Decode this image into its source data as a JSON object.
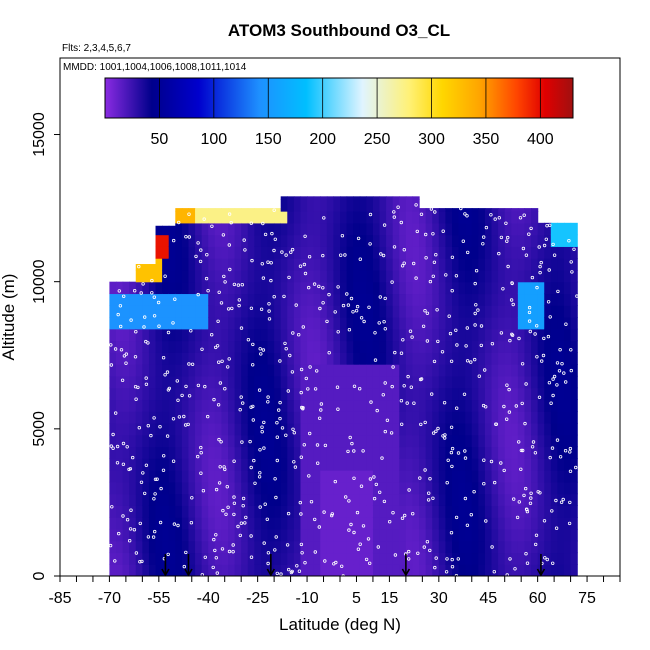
{
  "chart_data": {
    "type": "heatmap",
    "title": "ATOM3 Southbound O3_CL",
    "flights_note": "Flts: 2,3,4,5,6,7",
    "dates_note": "MMDD: 1001,1004,1006,1008,1011,1014",
    "xlabel": "Latitude (deg N)",
    "ylabel": "Altitude (m)",
    "xlim": [
      -85,
      85
    ],
    "ylim": [
      0,
      17600
    ],
    "x_tick_labels": [
      -85,
      -70,
      -55,
      -40,
      -25,
      -10,
      5,
      15,
      30,
      45,
      60,
      75
    ],
    "x_minor_step": 5,
    "y_ticks": [
      0,
      5000,
      10000,
      15000
    ],
    "colorbar": {
      "range": [
        0,
        430
      ],
      "tick_labels": [
        50,
        100,
        150,
        200,
        250,
        300,
        350,
        400
      ],
      "colors": [
        "#8a2be2",
        "#00008b",
        "#0000cd",
        "#1e90ff",
        "#00bfff",
        "#e0f4ff",
        "#fff176",
        "#ffd700",
        "#ffa500",
        "#ff4500",
        "#e00000",
        "#a01010"
      ]
    },
    "data_extent": {
      "lat_min": -70,
      "lat_max": 72,
      "alt_max_by_segment": [
        {
          "lat": [
            -70,
            -62
          ],
          "alt_max": 10000
        },
        {
          "lat": [
            -62,
            -55
          ],
          "alt_max": 10600
        },
        {
          "lat": [
            -55,
            -50
          ],
          "alt_max": 11900
        },
        {
          "lat": [
            -50,
            -17
          ],
          "alt_max": 12500
        },
        {
          "lat": [
            -17,
            25
          ],
          "alt_max": 12900
        },
        {
          "lat": [
            25,
            60
          ],
          "alt_max": 12500
        },
        {
          "lat": [
            60,
            72
          ],
          "alt_max": 12000
        }
      ]
    },
    "ozone_regions": [
      {
        "name": "background-mid",
        "lat": [
          -70,
          72
        ],
        "alt": [
          0,
          12900
        ],
        "o3": 30
      },
      {
        "name": "tropical-low",
        "lat": [
          -12,
          18
        ],
        "alt": [
          0,
          7000
        ],
        "o3": 15
      },
      {
        "name": "tropical-core",
        "lat": [
          -5,
          10
        ],
        "alt": [
          0,
          3500
        ],
        "o3": 10
      },
      {
        "name": "upper-south",
        "lat": [
          -50,
          -17
        ],
        "alt": [
          11900,
          12500
        ],
        "o3": 230
      },
      {
        "name": "upper-south-edge",
        "lat": [
          -50,
          -44
        ],
        "alt": [
          11900,
          12500
        ],
        "o3": 300
      },
      {
        "name": "strat-intrusion",
        "lat": [
          -57,
          -52
        ],
        "alt": [
          10700,
          11500
        ],
        "o3": 380
      },
      {
        "name": "strat-intrusion-2",
        "lat": [
          -62,
          -55
        ],
        "alt": [
          10000,
          10600
        ],
        "o3": 290
      },
      {
        "name": "ut-band-south",
        "lat": [
          -70,
          -40
        ],
        "alt": [
          8500,
          9600
        ],
        "o3": 120
      },
      {
        "name": "ut-band-north",
        "lat": [
          55,
          62
        ],
        "alt": [
          8500,
          9800
        ],
        "o3": 130
      },
      {
        "name": "ut-band-arctic",
        "lat": [
          65,
          72
        ],
        "alt": [
          11200,
          12000
        ],
        "o3": 160
      }
    ],
    "aircraft_profile_arrows_lat": [
      -53,
      -46,
      -21,
      20,
      61
    ]
  }
}
